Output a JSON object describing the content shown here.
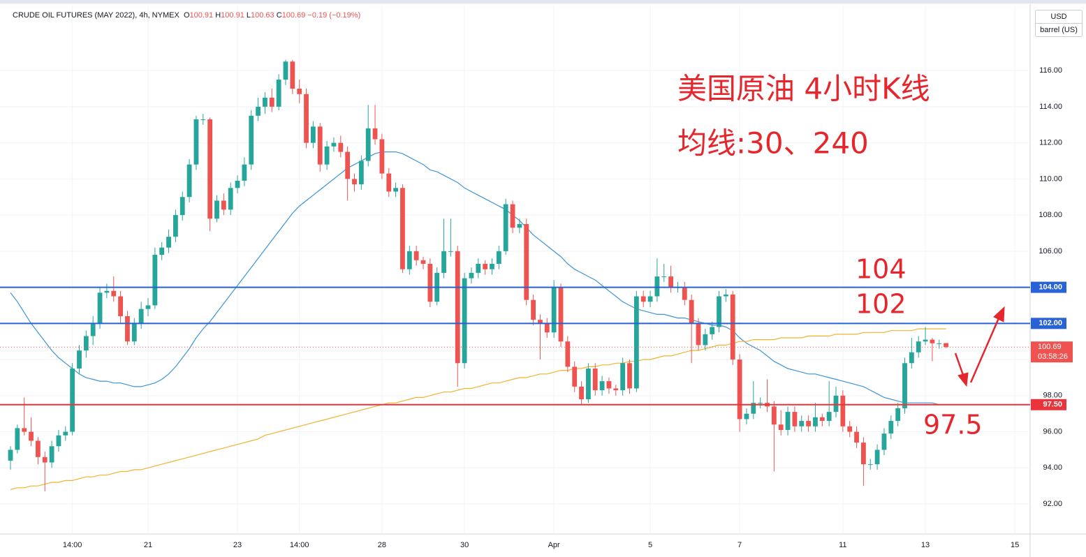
{
  "chart_data": {
    "type": "candlestick",
    "title": "CRUDE OIL FUTURES (MAY 2022), 4h, NYMEX",
    "ohlc_legend": [
      {
        "key": "O",
        "value": "100.91"
      },
      {
        "key": "H",
        "value": "100.91"
      },
      {
        "key": "L",
        "value": "100.63"
      },
      {
        "key": "C",
        "value": "100.69"
      }
    ],
    "change": "−0.19 (−0.19%)",
    "currency": "USD",
    "unit": "barrel (US)",
    "annotations": [
      "美国原油 4小时K线",
      "均线:30、240",
      "104",
      "102",
      "97.5"
    ],
    "up_color": "#26a69a",
    "down_color": "#ef5350",
    "grid": true,
    "ylim": [
      90.34,
      119.6
    ],
    "yticks": [
      {
        "value": 92,
        "label": "92.00"
      },
      {
        "value": 94,
        "label": "94.00"
      },
      {
        "value": 96,
        "label": "96.00"
      },
      {
        "value": 98,
        "label": "98.00"
      },
      {
        "value": 100,
        "label": "100.00"
      },
      {
        "value": 102,
        "label": "102.00"
      },
      {
        "value": 104,
        "label": "104.00"
      },
      {
        "value": 106,
        "label": "106.00"
      },
      {
        "value": 108,
        "label": "108.00"
      },
      {
        "value": 110,
        "label": "110.00"
      },
      {
        "value": 112,
        "label": "112.00"
      },
      {
        "value": 114,
        "label": "114.00"
      },
      {
        "value": 116,
        "label": "116.00"
      }
    ],
    "levels": [
      {
        "value": 104,
        "label": "104.00",
        "color": "#2962d6"
      },
      {
        "value": 102,
        "label": "102.00",
        "color": "#2962d6"
      },
      {
        "value": 97.5,
        "label": "97.50",
        "color": "#e8343a"
      }
    ],
    "last_price": {
      "value": 100.69,
      "label": "100.69",
      "countdown": "03:58:26",
      "color": "#ef5350"
    },
    "categories": [
      null,
      null,
      null,
      null,
      null,
      null,
      null,
      null,
      null,
      "14:00",
      null,
      null,
      null,
      null,
      null,
      null,
      null,
      null,
      null,
      null,
      "21",
      null,
      null,
      null,
      null,
      null,
      null,
      null,
      null,
      null,
      null,
      null,
      null,
      "23",
      null,
      null,
      null,
      null,
      null,
      null,
      null,
      null,
      "14:00",
      null,
      null,
      null,
      null,
      null,
      null,
      null,
      null,
      null,
      null,
      null,
      "28",
      null,
      null,
      null,
      null,
      null,
      null,
      null,
      null,
      null,
      null,
      null,
      "30",
      null,
      null,
      null,
      null,
      null,
      null,
      null,
      null,
      null,
      null,
      null,
      null,
      "Apr",
      null,
      null,
      null,
      null,
      null,
      null,
      null,
      null,
      null,
      null,
      null,
      null,
      null,
      "5",
      null,
      null,
      null,
      null,
      null,
      null,
      null,
      null,
      null,
      null,
      null,
      null,
      "7",
      null,
      null,
      null,
      null,
      null,
      null,
      null,
      null,
      null,
      null,
      null,
      null,
      null,
      null,
      "11",
      null,
      null,
      null,
      null,
      null,
      null,
      null,
      null,
      null,
      null,
      null,
      "13",
      null,
      null,
      null,
      null,
      null,
      null,
      null,
      null,
      null,
      null,
      null,
      null,
      "15",
      null,
      null,
      null
    ],
    "candles": [
      [
        94.4,
        95.2,
        93.9,
        95.0
      ],
      [
        95.0,
        96.4,
        94.8,
        96.2
      ],
      [
        96.2,
        97.9,
        95.8,
        96.0
      ],
      [
        96.0,
        96.8,
        95.2,
        95.5
      ],
      [
        95.5,
        95.7,
        94.2,
        94.6
      ],
      [
        94.6,
        94.9,
        92.7,
        94.3
      ],
      [
        94.3,
        95.5,
        94.0,
        95.2
      ],
      [
        95.2,
        96.1,
        94.9,
        95.8
      ],
      [
        95.8,
        96.3,
        95.5,
        96.0
      ],
      [
        96.0,
        99.8,
        95.8,
        99.5
      ],
      [
        99.5,
        100.8,
        99.2,
        100.5
      ],
      [
        100.5,
        101.6,
        100.1,
        101.3
      ],
      [
        101.3,
        102.4,
        100.8,
        102.0
      ],
      [
        102.0,
        104.0,
        101.7,
        103.7
      ],
      [
        103.7,
        104.2,
        103.4,
        103.8
      ],
      [
        103.8,
        104.6,
        103.2,
        103.5
      ],
      [
        103.5,
        103.8,
        102.0,
        102.4
      ],
      [
        102.4,
        102.7,
        100.8,
        101.0
      ],
      [
        101.0,
        102.3,
        100.8,
        102.0
      ],
      [
        102.0,
        103.2,
        101.7,
        102.8
      ],
      [
        102.8,
        103.4,
        102.4,
        103.0
      ],
      [
        103.0,
        106.2,
        102.8,
        105.8
      ],
      [
        105.8,
        106.5,
        105.5,
        106.2
      ],
      [
        106.2,
        107.2,
        105.9,
        106.8
      ],
      [
        106.8,
        108.3,
        106.5,
        108.0
      ],
      [
        108.0,
        109.3,
        107.7,
        109.0
      ],
      [
        109.0,
        111.1,
        108.7,
        110.8
      ],
      [
        110.8,
        113.5,
        110.5,
        113.3
      ],
      [
        113.3,
        113.6,
        113.0,
        113.3
      ],
      [
        113.3,
        113.4,
        107.1,
        107.8
      ],
      [
        107.8,
        109.1,
        107.6,
        108.8
      ],
      [
        108.8,
        109.2,
        108.0,
        108.3
      ],
      [
        108.3,
        109.8,
        108.0,
        109.5
      ],
      [
        109.5,
        110.2,
        109.2,
        109.9
      ],
      [
        109.9,
        111.2,
        109.6,
        110.8
      ],
      [
        110.8,
        113.8,
        110.5,
        113.5
      ],
      [
        113.5,
        114.5,
        113.2,
        114.0
      ],
      [
        114.0,
        114.8,
        113.6,
        114.5
      ],
      [
        114.5,
        115.0,
        113.7,
        114.0
      ],
      [
        114.0,
        115.8,
        113.8,
        115.5
      ],
      [
        115.5,
        116.6,
        115.2,
        116.5
      ],
      [
        116.5,
        116.6,
        114.7,
        115.0
      ],
      [
        115.0,
        115.5,
        114.2,
        114.7
      ],
      [
        114.7,
        115.0,
        111.7,
        112.0
      ],
      [
        112.0,
        113.2,
        111.7,
        112.9
      ],
      [
        112.9,
        113.1,
        110.4,
        110.8
      ],
      [
        110.8,
        112.1,
        110.5,
        111.8
      ],
      [
        111.8,
        112.3,
        111.5,
        112.0
      ],
      [
        112.0,
        112.4,
        111.2,
        111.5
      ],
      [
        111.5,
        111.8,
        108.8,
        110.0
      ],
      [
        110.0,
        110.3,
        109.3,
        109.7
      ],
      [
        109.7,
        111.3,
        109.4,
        111.0
      ],
      [
        111.0,
        114.1,
        110.7,
        112.8
      ],
      [
        112.8,
        114.1,
        111.9,
        112.2
      ],
      [
        112.2,
        112.5,
        110.0,
        110.3
      ],
      [
        110.3,
        110.6,
        109.0,
        109.3
      ],
      [
        109.3,
        109.8,
        109.0,
        109.5
      ],
      [
        109.5,
        109.7,
        104.8,
        105.0
      ],
      [
        105.0,
        106.3,
        104.7,
        106.0
      ],
      [
        106.0,
        106.3,
        105.2,
        105.5
      ],
      [
        105.5,
        105.7,
        105.0,
        105.3
      ],
      [
        105.3,
        105.6,
        102.9,
        103.2
      ],
      [
        103.2,
        105.1,
        103.0,
        104.8
      ],
      [
        104.8,
        107.8,
        104.5,
        106.0
      ],
      [
        106.0,
        107.8,
        105.7,
        106.0
      ],
      [
        106.0,
        106.3,
        98.5,
        99.8
      ],
      [
        99.8,
        104.8,
        99.5,
        104.5
      ],
      [
        104.5,
        105.1,
        104.2,
        104.8
      ],
      [
        104.8,
        105.6,
        104.5,
        105.3
      ],
      [
        105.3,
        105.5,
        104.7,
        105.0
      ],
      [
        105.0,
        105.6,
        104.7,
        105.3
      ],
      [
        105.3,
        106.3,
        105.0,
        106.0
      ],
      [
        106.0,
        108.9,
        105.8,
        108.6
      ],
      [
        108.6,
        108.8,
        107.0,
        107.3
      ],
      [
        107.3,
        107.8,
        107.0,
        107.5
      ],
      [
        107.5,
        107.8,
        103.0,
        103.3
      ],
      [
        103.3,
        103.6,
        101.9,
        102.2
      ],
      [
        102.2,
        102.5,
        100.0,
        102.0
      ],
      [
        102.0,
        102.3,
        101.2,
        101.5
      ],
      [
        101.5,
        104.4,
        101.2,
        104.0
      ],
      [
        104.0,
        104.2,
        100.7,
        101.0
      ],
      [
        101.0,
        101.3,
        99.3,
        99.6
      ],
      [
        99.6,
        99.9,
        98.2,
        98.5
      ],
      [
        98.5,
        98.8,
        97.5,
        97.8
      ],
      [
        97.8,
        99.8,
        97.6,
        99.5
      ],
      [
        99.5,
        99.8,
        98.0,
        98.3
      ],
      [
        98.3,
        99.1,
        98.0,
        98.8
      ],
      [
        98.8,
        99.0,
        98.1,
        98.4
      ],
      [
        98.4,
        98.6,
        98.0,
        98.3
      ],
      [
        98.3,
        100.1,
        98.0,
        99.8
      ],
      [
        99.8,
        100.0,
        98.1,
        98.4
      ],
      [
        98.4,
        103.8,
        98.2,
        103.5
      ],
      [
        103.5,
        103.8,
        102.9,
        103.2
      ],
      [
        103.2,
        103.8,
        102.9,
        103.5
      ],
      [
        103.5,
        105.6,
        103.2,
        104.6
      ],
      [
        104.6,
        105.3,
        104.3,
        104.6
      ],
      [
        104.6,
        105.2,
        103.7,
        104.0
      ],
      [
        104.0,
        104.3,
        103.7,
        104.0
      ],
      [
        104.0,
        104.3,
        103.0,
        103.3
      ],
      [
        103.3,
        103.6,
        99.8,
        102.0
      ],
      [
        102.0,
        102.3,
        100.5,
        100.8
      ],
      [
        100.8,
        101.7,
        100.5,
        101.4
      ],
      [
        101.4,
        102.1,
        101.1,
        101.8
      ],
      [
        101.8,
        103.8,
        101.5,
        103.5
      ],
      [
        103.5,
        103.9,
        103.2,
        103.6
      ],
      [
        103.6,
        103.8,
        99.7,
        100.0
      ],
      [
        100.0,
        100.3,
        96.0,
        96.7
      ],
      [
        96.7,
        97.3,
        96.4,
        97.0
      ],
      [
        97.0,
        98.8,
        96.7,
        97.6
      ],
      [
        97.6,
        97.9,
        97.3,
        97.6
      ],
      [
        97.6,
        98.9,
        97.1,
        97.4
      ],
      [
        97.4,
        97.7,
        93.8,
        96.4
      ],
      [
        96.4,
        97.2,
        95.8,
        96.1
      ],
      [
        96.1,
        97.4,
        95.8,
        97.1
      ],
      [
        97.1,
        97.4,
        96.0,
        96.3
      ],
      [
        96.3,
        96.9,
        96.0,
        96.6
      ],
      [
        96.6,
        96.9,
        96.0,
        96.3
      ],
      [
        96.3,
        97.6,
        96.0,
        96.8
      ],
      [
        96.8,
        97.0,
        96.3,
        96.6
      ],
      [
        96.6,
        98.8,
        96.3,
        97.1
      ],
      [
        97.1,
        98.5,
        96.8,
        98.0
      ],
      [
        98.0,
        98.3,
        96.0,
        96.3
      ],
      [
        96.3,
        96.6,
        95.7,
        96.0
      ],
      [
        96.0,
        96.3,
        95.1,
        95.4
      ],
      [
        95.4,
        95.7,
        93.0,
        94.2
      ],
      [
        94.2,
        94.5,
        93.9,
        94.2
      ],
      [
        94.2,
        95.3,
        93.9,
        95.0
      ],
      [
        95.0,
        96.2,
        94.7,
        95.9
      ],
      [
        95.9,
        96.9,
        95.6,
        96.6
      ],
      [
        96.6,
        97.6,
        96.3,
        97.3
      ],
      [
        97.3,
        100.1,
        97.0,
        99.8
      ],
      [
        99.8,
        101.2,
        99.5,
        100.4
      ],
      [
        100.4,
        101.3,
        100.1,
        101.0
      ],
      [
        101.0,
        101.8,
        100.8,
        101.1
      ],
      [
        101.1,
        101.2,
        99.9,
        100.9
      ],
      [
        100.9,
        101.1,
        100.6,
        100.9
      ],
      [
        100.91,
        100.91,
        100.63,
        100.69
      ],
      null,
      null,
      null,
      null,
      null,
      null,
      null,
      null,
      null,
      null,
      null,
      null,
      null
    ],
    "series": [
      {
        "color": "#3d94d8",
        "values": [
          103.7,
          103.2,
          102.6,
          102.0,
          101.5,
          101.0,
          100.5,
          100.1,
          99.8,
          99.5,
          99.2,
          99.0,
          98.9,
          98.8,
          98.8,
          98.7,
          98.7,
          98.6,
          98.5,
          98.5,
          98.6,
          98.7,
          98.9,
          99.2,
          99.6,
          100.1,
          100.6,
          101.2,
          101.7,
          102.1,
          102.6,
          103.1,
          103.6,
          104.1,
          104.6,
          105.1,
          105.6,
          106.1,
          106.6,
          107.1,
          107.6,
          108.1,
          108.5,
          108.8,
          109.1,
          109.4,
          109.7,
          110.0,
          110.3,
          110.6,
          110.8,
          111.0,
          111.2,
          111.4,
          111.5,
          111.5,
          111.5,
          111.4,
          111.2,
          111.0,
          110.8,
          110.5,
          110.4,
          110.2,
          110.0,
          109.8,
          109.5,
          109.3,
          109.1,
          108.9,
          108.7,
          108.5,
          108.3,
          108.0,
          107.7,
          107.3,
          106.9,
          106.6,
          106.3,
          106.0,
          105.7,
          105.3,
          105.0,
          104.8,
          104.6,
          104.4,
          104.1,
          103.8,
          103.5,
          103.2,
          103.0,
          102.8,
          102.7,
          102.6,
          102.5,
          102.5,
          102.4,
          102.3,
          102.3,
          102.2,
          102.1,
          102.0,
          101.9,
          101.9,
          101.8,
          101.6,
          101.2,
          100.9,
          100.7,
          100.5,
          100.2,
          99.9,
          99.7,
          99.5,
          99.4,
          99.3,
          99.2,
          99.2,
          99.1,
          99.0,
          98.9,
          98.8,
          98.7,
          98.6,
          98.5,
          98.3,
          98.1,
          97.9,
          97.8,
          97.7,
          97.6,
          97.6,
          97.6,
          97.6,
          97.6,
          97.5,
          97.5,
          null,
          null,
          null,
          null,
          null,
          null,
          null,
          null,
          null,
          null,
          null,
          null,
          null
        ]
      },
      {
        "color": "#f2b230",
        "values": [
          92.8,
          92.9,
          92.9,
          93.0,
          93.0,
          93.1,
          93.2,
          93.2,
          93.3,
          93.3,
          93.4,
          93.5,
          93.5,
          93.6,
          93.6,
          93.7,
          93.8,
          93.8,
          93.9,
          93.9,
          94.0,
          94.1,
          94.2,
          94.3,
          94.4,
          94.5,
          94.6,
          94.7,
          94.8,
          94.9,
          95.0,
          95.1,
          95.2,
          95.3,
          95.4,
          95.5,
          95.6,
          95.8,
          95.9,
          96.0,
          96.1,
          96.2,
          96.3,
          96.4,
          96.5,
          96.6,
          96.7,
          96.8,
          96.9,
          97.0,
          97.1,
          97.2,
          97.3,
          97.4,
          97.5,
          97.6,
          97.6,
          97.7,
          97.8,
          97.9,
          97.9,
          98.0,
          98.1,
          98.2,
          98.2,
          98.3,
          98.4,
          98.4,
          98.5,
          98.6,
          98.7,
          98.7,
          98.8,
          98.9,
          99.0,
          99.0,
          99.1,
          99.2,
          99.2,
          99.3,
          99.4,
          99.4,
          99.5,
          99.5,
          99.6,
          99.6,
          99.7,
          99.7,
          99.8,
          99.8,
          99.9,
          99.9,
          100.0,
          100.0,
          100.1,
          100.2,
          100.2,
          100.3,
          100.4,
          100.5,
          100.5,
          100.6,
          100.7,
          100.8,
          100.8,
          100.9,
          101.0,
          101.0,
          101.1,
          101.1,
          101.1,
          101.1,
          101.2,
          101.2,
          101.2,
          101.2,
          101.3,
          101.3,
          101.3,
          101.3,
          101.4,
          101.4,
          101.4,
          101.4,
          101.5,
          101.5,
          101.5,
          101.5,
          101.6,
          101.6,
          101.6,
          101.6,
          101.7,
          101.7,
          101.7,
          101.7,
          101.7,
          null,
          null,
          null,
          null,
          null,
          null,
          null,
          null,
          null,
          null,
          null,
          null,
          null
        ]
      }
    ]
  }
}
